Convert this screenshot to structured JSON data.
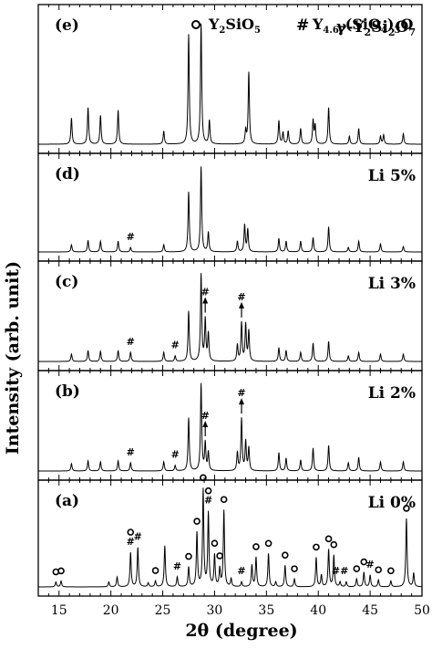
{
  "chart_data": {
    "type": "line",
    "xlabel": "2θ (degree)",
    "ylabel": "Intensity (arb. unit)",
    "xlim": [
      13,
      50
    ],
    "x_ticks": [
      15,
      20,
      25,
      30,
      35,
      40,
      45,
      50
    ],
    "legend": {
      "position": "top-right",
      "entries": [
        {
          "marker": "○",
          "label": "Y2SiO5",
          "parts": [
            [
              "Y",
              ""
            ],
            [
              "2",
              "sub"
            ],
            [
              "SiO",
              ""
            ],
            [
              "5",
              "sub"
            ]
          ]
        },
        {
          "marker": "#",
          "label": "Y4.67(SiO4)3O",
          "parts": [
            [
              "Y",
              ""
            ],
            [
              "4.67",
              "sub"
            ],
            [
              "(SiO",
              ""
            ],
            [
              "4",
              "sub"
            ],
            [
              ")",
              ""
            ],
            [
              "3",
              "sub"
            ],
            [
              "O",
              ""
            ]
          ]
        }
      ]
    },
    "panels": [
      {
        "id": "(e)",
        "label": "γ-Y2Si2O7",
        "label_parts": [
          [
            "γ-Y",
            ""
          ],
          [
            "2",
            "sub"
          ],
          [
            "Si",
            ""
          ],
          [
            "2",
            "sub"
          ],
          [
            "O",
            ""
          ],
          [
            "7",
            "sub"
          ]
        ],
        "peaks": [
          [
            16.2,
            0.2
          ],
          [
            17.8,
            0.28
          ],
          [
            19.0,
            0.22
          ],
          [
            20.7,
            0.26
          ],
          [
            25.1,
            0.1
          ],
          [
            27.5,
            0.84
          ],
          [
            28.7,
            0.92
          ],
          [
            29.5,
            0.18
          ],
          [
            33.0,
            0.1
          ],
          [
            33.3,
            0.55
          ],
          [
            36.2,
            0.18
          ],
          [
            36.6,
            0.09
          ],
          [
            37.1,
            0.1
          ],
          [
            38.3,
            0.12
          ],
          [
            39.5,
            0.18
          ],
          [
            39.7,
            0.14
          ],
          [
            41.0,
            0.28
          ],
          [
            43.0,
            0.06
          ],
          [
            43.9,
            0.12
          ],
          [
            46.0,
            0.06
          ],
          [
            46.3,
            0.07
          ],
          [
            48.2,
            0.08
          ]
        ]
      },
      {
        "id": "(d)",
        "label": "Li 5%",
        "peaks": [
          [
            16.2,
            0.08
          ],
          [
            17.8,
            0.13
          ],
          [
            19.0,
            0.12
          ],
          [
            20.7,
            0.12
          ],
          [
            21.9,
            0.05
          ],
          [
            25.1,
            0.08
          ],
          [
            27.5,
            0.67
          ],
          [
            28.7,
            0.95
          ],
          [
            29.4,
            0.22
          ],
          [
            32.2,
            0.12
          ],
          [
            32.9,
            0.3
          ],
          [
            33.2,
            0.25
          ],
          [
            36.2,
            0.15
          ],
          [
            36.9,
            0.12
          ],
          [
            38.3,
            0.12
          ],
          [
            39.5,
            0.16
          ],
          [
            41.0,
            0.28
          ],
          [
            42.9,
            0.05
          ],
          [
            43.9,
            0.12
          ],
          [
            46.0,
            0.09
          ],
          [
            48.2,
            0.06
          ]
        ]
      },
      {
        "id": "(c)",
        "label": "Li 3%",
        "peaks": [
          [
            16.2,
            0.08
          ],
          [
            17.8,
            0.12
          ],
          [
            19.0,
            0.11
          ],
          [
            20.7,
            0.12
          ],
          [
            21.9,
            0.1
          ],
          [
            25.1,
            0.1
          ],
          [
            26.2,
            0.06
          ],
          [
            27.5,
            0.55
          ],
          [
            28.7,
            0.95
          ],
          [
            29.1,
            0.45
          ],
          [
            29.4,
            0.3
          ],
          [
            32.2,
            0.18
          ],
          [
            32.6,
            0.42
          ],
          [
            33.0,
            0.4
          ],
          [
            33.3,
            0.33
          ],
          [
            36.2,
            0.15
          ],
          [
            36.9,
            0.12
          ],
          [
            38.3,
            0.1
          ],
          [
            39.5,
            0.2
          ],
          [
            41.0,
            0.22
          ],
          [
            42.9,
            0.06
          ],
          [
            43.9,
            0.1
          ],
          [
            46.0,
            0.08
          ],
          [
            48.2,
            0.08
          ]
        ]
      },
      {
        "id": "(b)",
        "label": "Li 2%",
        "peaks": [
          [
            16.2,
            0.08
          ],
          [
            17.8,
            0.11
          ],
          [
            19.0,
            0.1
          ],
          [
            20.7,
            0.11
          ],
          [
            21.9,
            0.09
          ],
          [
            25.1,
            0.1
          ],
          [
            26.2,
            0.06
          ],
          [
            27.5,
            0.58
          ],
          [
            28.7,
            0.95
          ],
          [
            29.1,
            0.3
          ],
          [
            29.4,
            0.2
          ],
          [
            32.2,
            0.2
          ],
          [
            32.6,
            0.57
          ],
          [
            33.0,
            0.32
          ],
          [
            33.3,
            0.25
          ],
          [
            36.2,
            0.2
          ],
          [
            36.9,
            0.14
          ],
          [
            38.3,
            0.12
          ],
          [
            39.5,
            0.25
          ],
          [
            41.0,
            0.28
          ],
          [
            42.9,
            0.09
          ],
          [
            43.9,
            0.15
          ],
          [
            46.0,
            0.1
          ],
          [
            48.2,
            0.1
          ]
        ]
      },
      {
        "id": "(a)",
        "label": "Li 0%",
        "peaks": [
          [
            14.7,
            0.05
          ],
          [
            15.2,
            0.06
          ],
          [
            19.8,
            0.05
          ],
          [
            20.6,
            0.1
          ],
          [
            21.9,
            0.35
          ],
          [
            22.6,
            0.4
          ],
          [
            23.6,
            0.04
          ],
          [
            24.3,
            0.06
          ],
          [
            25.2,
            0.42
          ],
          [
            26.4,
            0.1
          ],
          [
            27.5,
            0.2
          ],
          [
            28.3,
            0.55
          ],
          [
            28.9,
            0.99
          ],
          [
            29.4,
            0.75
          ],
          [
            30.0,
            0.32
          ],
          [
            30.5,
            0.18
          ],
          [
            30.9,
            0.78
          ],
          [
            31.6,
            0.08
          ],
          [
            32.6,
            0.05
          ],
          [
            33.6,
            0.22
          ],
          [
            34.0,
            0.3
          ],
          [
            35.2,
            0.34
          ],
          [
            35.9,
            0.05
          ],
          [
            36.8,
            0.22
          ],
          [
            37.7,
            0.08
          ],
          [
            39.8,
            0.3
          ],
          [
            40.3,
            0.12
          ],
          [
            41.0,
            0.38
          ],
          [
            41.5,
            0.32
          ],
          [
            42.1,
            0.05
          ],
          [
            42.7,
            0.05
          ],
          [
            43.7,
            0.08
          ],
          [
            44.4,
            0.15
          ],
          [
            45.0,
            0.12
          ],
          [
            45.8,
            0.07
          ],
          [
            47.0,
            0.06
          ],
          [
            48.5,
            0.7
          ],
          [
            49.2,
            0.14
          ]
        ]
      }
    ],
    "annotations": {
      "(d)": [
        {
          "x": 21.9,
          "sym": "#"
        }
      ],
      "(c)": [
        {
          "x": 21.9,
          "sym": "#"
        },
        {
          "x": 26.2,
          "sym": "#"
        },
        {
          "x": 29.1,
          "sym": "#",
          "arrow": true
        },
        {
          "x": 32.6,
          "sym": "#",
          "arrow": true
        }
      ],
      "(b)": [
        {
          "x": 21.9,
          "sym": "#"
        },
        {
          "x": 26.2,
          "sym": "#"
        },
        {
          "x": 29.1,
          "sym": "#",
          "arrow": true
        },
        {
          "x": 32.6,
          "sym": "#",
          "arrow": true
        }
      ],
      "(a)": [
        {
          "x": 14.7,
          "sym": "○"
        },
        {
          "x": 15.2,
          "sym": "○"
        },
        {
          "x": 21.9,
          "sym": "○#"
        },
        {
          "x": 22.6,
          "sym": "#"
        },
        {
          "x": 24.3,
          "sym": "○"
        },
        {
          "x": 26.4,
          "sym": "#"
        },
        {
          "x": 27.5,
          "sym": "○"
        },
        {
          "x": 28.3,
          "sym": "○"
        },
        {
          "x": 28.9,
          "sym": "○"
        },
        {
          "x": 29.4,
          "sym": "○#"
        },
        {
          "x": 30.0,
          "sym": "○"
        },
        {
          "x": 30.5,
          "sym": "○"
        },
        {
          "x": 30.9,
          "sym": "○"
        },
        {
          "x": 32.6,
          "sym": "#"
        },
        {
          "x": 34.0,
          "sym": "○"
        },
        {
          "x": 35.2,
          "sym": "○"
        },
        {
          "x": 36.8,
          "sym": "○"
        },
        {
          "x": 37.7,
          "sym": "○"
        },
        {
          "x": 39.8,
          "sym": "○"
        },
        {
          "x": 41.0,
          "sym": "○"
        },
        {
          "x": 41.5,
          "sym": "○"
        },
        {
          "x": 42.1,
          "sym": "##"
        },
        {
          "x": 43.7,
          "sym": "○"
        },
        {
          "x": 44.4,
          "sym": "○"
        },
        {
          "x": 45.0,
          "sym": "#"
        },
        {
          "x": 45.8,
          "sym": "○"
        },
        {
          "x": 47.0,
          "sym": "○"
        },
        {
          "x": 48.5,
          "sym": "○"
        }
      ]
    }
  }
}
